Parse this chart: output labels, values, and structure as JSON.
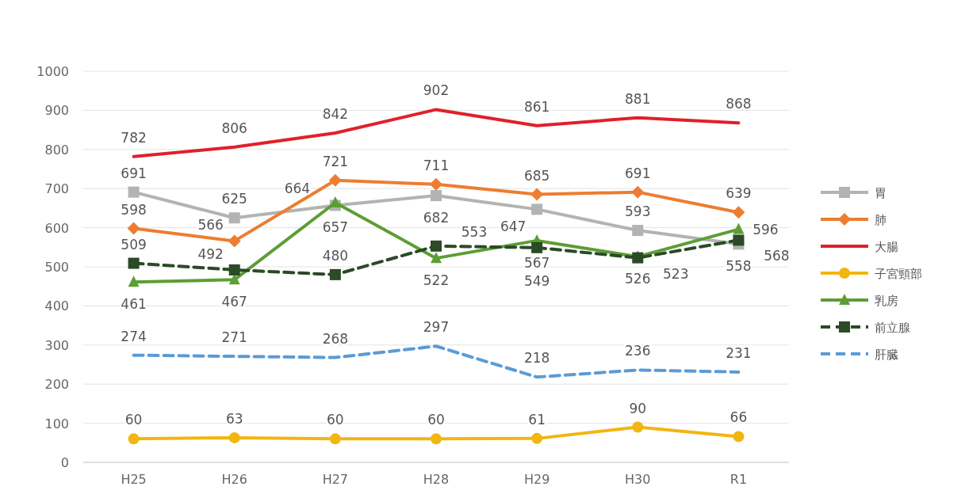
{
  "chart_data": {
    "type": "line",
    "categories": [
      "H25",
      "H26",
      "H27",
      "H28",
      "H29",
      "H30",
      "R1"
    ],
    "ylim": [
      0,
      1000
    ],
    "yticks": [
      0,
      100,
      200,
      300,
      400,
      500,
      600,
      700,
      800,
      900,
      1000
    ],
    "grid": "y",
    "legend": "right",
    "data_labels": true,
    "series": [
      {
        "name": "胃",
        "color": "#b3b3b3",
        "marker": "square",
        "line_style": "solid",
        "values": [
          691,
          625,
          657,
          682,
          647,
          593,
          558
        ]
      },
      {
        "name": "肺",
        "color": "#ed7d31",
        "marker": "diamond",
        "line_style": "solid",
        "values": [
          598,
          566,
          721,
          711,
          685,
          691,
          639
        ]
      },
      {
        "name": "大腸",
        "color": "#e0202a",
        "marker": "none",
        "line_style": "solid",
        "values": [
          782,
          806,
          842,
          902,
          861,
          881,
          868
        ]
      },
      {
        "name": "子宮頸部",
        "color": "#f2b511",
        "marker": "circle",
        "line_style": "solid",
        "values": [
          60,
          63,
          60,
          60,
          61,
          90,
          66
        ]
      },
      {
        "name": "乳房",
        "color": "#5c9e33",
        "marker": "triangle",
        "line_style": "solid",
        "values": [
          461,
          467,
          664,
          522,
          567,
          526,
          596
        ]
      },
      {
        "name": "前立腺",
        "color": "#2b4a26",
        "marker": "square",
        "line_style": "dashed",
        "values": [
          509,
          492,
          480,
          553,
          549,
          523,
          568
        ]
      },
      {
        "name": "肝臓",
        "color": "#5b9bd5",
        "marker": "none",
        "line_style": "dashed",
        "values": [
          274,
          271,
          268,
          297,
          218,
          236,
          231
        ]
      }
    ]
  }
}
